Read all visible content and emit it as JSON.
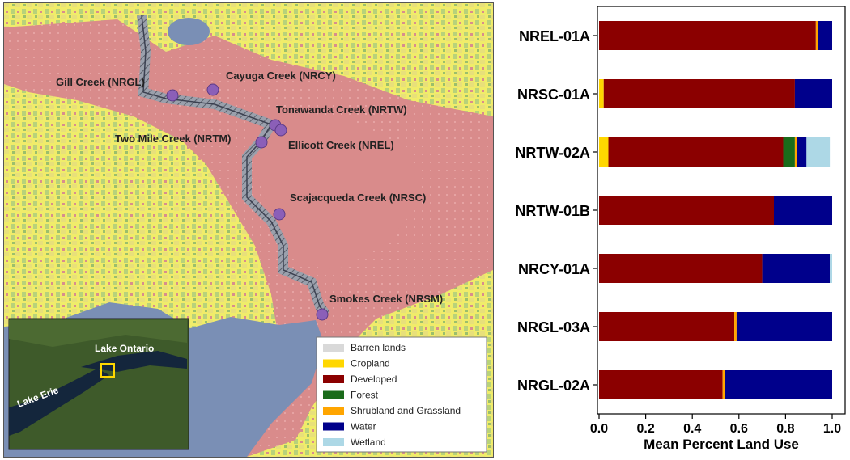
{
  "map": {
    "sites": [
      {
        "label": "Gill Creek (NRGL)"
      },
      {
        "label": "Cayuga Creek (NRCY)"
      },
      {
        "label": "Tonawanda Creek (NRTW)"
      },
      {
        "label": "Two Mile Creek (NRTM)"
      },
      {
        "label": "Ellicott Creek (NREL)"
      },
      {
        "label": "Scajacqueda Creek (NRSC)"
      },
      {
        "label": "Smokes Creek (NRSM)"
      }
    ],
    "inset": {
      "lake_ontario": "Lake Ontario",
      "lake_erie": "Lake Erie"
    },
    "legend": [
      {
        "label": "Barren lands",
        "color": "#d9d9d9"
      },
      {
        "label": "Cropland",
        "color": "#ffd700"
      },
      {
        "label": "Developed",
        "color": "#8b0000"
      },
      {
        "label": "Forest",
        "color": "#1a6b1a"
      },
      {
        "label": "Shrubland and Grassland",
        "color": "#ffa500"
      },
      {
        "label": "Water",
        "color": "#00008b"
      },
      {
        "label": "Wetland",
        "color": "#add8e6"
      }
    ]
  },
  "chart_data": {
    "type": "bar",
    "orientation": "horizontal",
    "stacked": true,
    "categories": [
      "NREL-01A",
      "NRSC-01A",
      "NRTW-02A",
      "NRTW-01B",
      "NRCY-01A",
      "NRGL-03A",
      "NRGL-02A"
    ],
    "series": [
      {
        "name": "Barren lands",
        "color": "#d9d9d9",
        "values": [
          0,
          0,
          0,
          0,
          0,
          0,
          0
        ]
      },
      {
        "name": "Cropland",
        "color": "#ffd700",
        "values": [
          0,
          0.02,
          0.04,
          0,
          0,
          0,
          0
        ]
      },
      {
        "name": "Developed",
        "color": "#8b0000",
        "values": [
          0.93,
          0.82,
          0.75,
          0.75,
          0.7,
          0.58,
          0.53
        ]
      },
      {
        "name": "Forest",
        "color": "#1a6b1a",
        "values": [
          0,
          0,
          0.05,
          0,
          0,
          0,
          0
        ]
      },
      {
        "name": "Shrubland and Grassland",
        "color": "#ffa500",
        "values": [
          0.01,
          0,
          0.01,
          0,
          0,
          0.01,
          0.01
        ]
      },
      {
        "name": "Water",
        "color": "#00008b",
        "values": [
          0.06,
          0.16,
          0.04,
          0.25,
          0.29,
          0.41,
          0.46
        ]
      },
      {
        "name": "Wetland",
        "color": "#add8e6",
        "values": [
          0,
          0,
          0.1,
          0,
          0.01,
          0,
          0
        ]
      }
    ],
    "xlabel": "Mean Percent Land Use",
    "ylabel": "",
    "xlim": [
      0,
      1
    ],
    "xticks": [
      "0.0",
      "0.2",
      "0.4",
      "0.6",
      "0.8",
      "1.0"
    ],
    "grid": false
  }
}
